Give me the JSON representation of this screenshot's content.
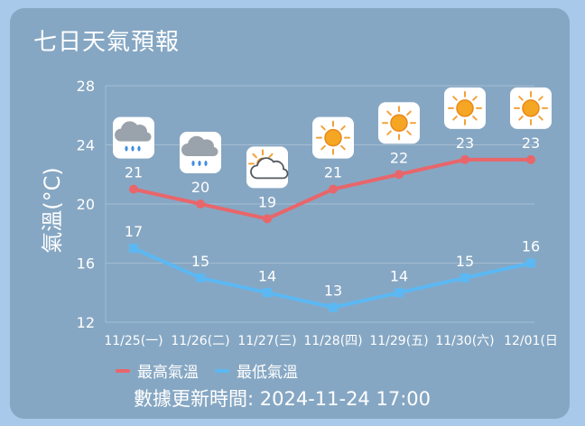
{
  "title": "七日天氣預報",
  "legend": {
    "high": "最高氣溫",
    "low": "最低氣溫"
  },
  "update_text": "數據更新時間: 2024-11-24 17:00",
  "colors": {
    "high": "#e8666b",
    "low": "#5bb8f3",
    "card": "#86a7c3",
    "background": "#a9c9ea"
  },
  "chart_data": {
    "type": "line",
    "ylabel": "氣溫(°C)",
    "ylim": [
      12,
      28
    ],
    "yticks": [
      12,
      16,
      20,
      24,
      28
    ],
    "categories": [
      "11/25(一)",
      "11/26(二)",
      "11/27(三)",
      "11/28(四)",
      "11/29(五)",
      "11/30(六)",
      "12/01(日"
    ],
    "series": [
      {
        "name": "最高氣溫",
        "values": [
          21,
          20,
          19,
          21,
          22,
          23,
          23
        ]
      },
      {
        "name": "最低氣溫",
        "values": [
          17,
          15,
          14,
          13,
          14,
          15,
          16
        ]
      }
    ],
    "icons": [
      "rain-cloud-icon",
      "rain-cloud-icon",
      "partly-cloudy-icon",
      "sun-icon",
      "sun-icon",
      "sun-icon",
      "sun-icon"
    ],
    "grid": true,
    "legend_position": "bottom-left"
  }
}
